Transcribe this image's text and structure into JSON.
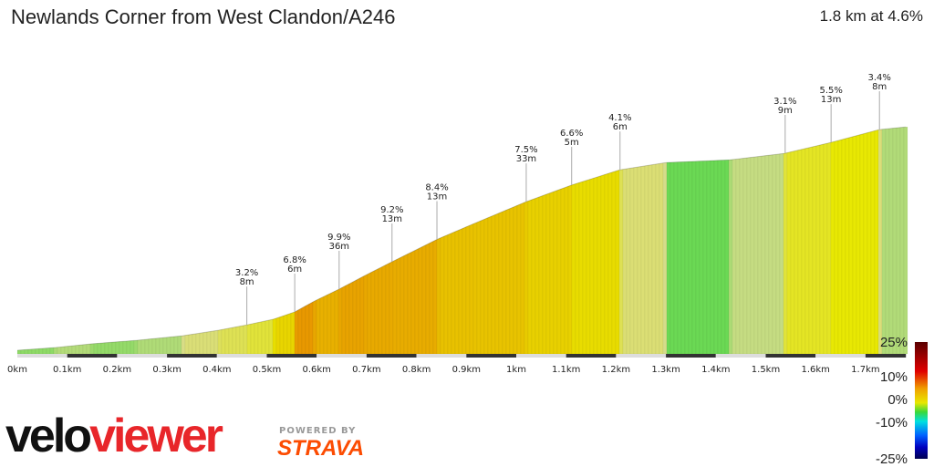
{
  "title": "Newlands Corner from West Clandon/A246",
  "summary": "1.8 km at 4.6%",
  "chart_data": {
    "type": "area",
    "xlabel": "",
    "ylabel": "",
    "x_ticks": [
      "0km",
      "0.1km",
      "0.2km",
      "0.3km",
      "0.4km",
      "0.5km",
      "0.6km",
      "0.7km",
      "0.8km",
      "0.9km",
      "1km",
      "1.1km",
      "1.2km",
      "1.3km",
      "1.4km",
      "1.5km",
      "1.6km",
      "1.7km"
    ],
    "xlim": [
      0,
      1.78
    ],
    "distance_km": [
      0,
      0.075,
      0.148,
      0.239,
      0.331,
      0.404,
      0.461,
      0.514,
      0.556,
      0.596,
      0.645,
      0.697,
      0.751,
      0.843,
      0.916,
      1.02,
      1.111,
      1.208,
      1.3,
      1.428,
      1.537,
      1.631,
      1.728,
      1.781
    ],
    "elevation_gain_m": [
      0,
      1,
      2.4,
      3.7,
      5.4,
      7.5,
      9.5,
      11.6,
      14.3,
      18.4,
      22.8,
      27.9,
      33,
      41.5,
      47.3,
      55.4,
      61.6,
      67.3,
      70,
      71,
      73.4,
      77.5,
      82.3,
      83.3
    ],
    "annotations": [
      {
        "km": 0.46,
        "grade": "3.2%",
        "length": "8m"
      },
      {
        "km": 0.556,
        "grade": "6.8%",
        "length": "6m"
      },
      {
        "km": 0.645,
        "grade": "9.9%",
        "length": "36m"
      },
      {
        "km": 0.751,
        "grade": "9.2%",
        "length": "13m"
      },
      {
        "km": 0.841,
        "grade": "8.4%",
        "length": "13m"
      },
      {
        "km": 1.02,
        "grade": "7.5%",
        "length": "33m"
      },
      {
        "km": 1.111,
        "grade": "6.6%",
        "length": "5m"
      },
      {
        "km": 1.208,
        "grade": "4.1%",
        "length": "6m"
      },
      {
        "km": 1.539,
        "grade": "3.1%",
        "length": "9m"
      },
      {
        "km": 1.631,
        "grade": "5.5%",
        "length": "13m"
      },
      {
        "km": 1.728,
        "grade": "3.4%",
        "length": "8m"
      }
    ],
    "legend": {
      "labels": [
        "25%",
        "10%",
        "0%",
        "-10%",
        "-25%"
      ],
      "colors": [
        "#5a0000",
        "#e00000",
        "#f0a000",
        "#e8e800",
        "#3ad83a",
        "#00e0e0",
        "#0060ff",
        "#0000c0",
        "#000050"
      ]
    }
  },
  "logo": {
    "velo": "velo",
    "viewer": "viewer",
    "powered_by": "POWERED BY",
    "strava": "STRAVA",
    "velo_color": "#111111",
    "viewer_color": "#e8262a"
  }
}
